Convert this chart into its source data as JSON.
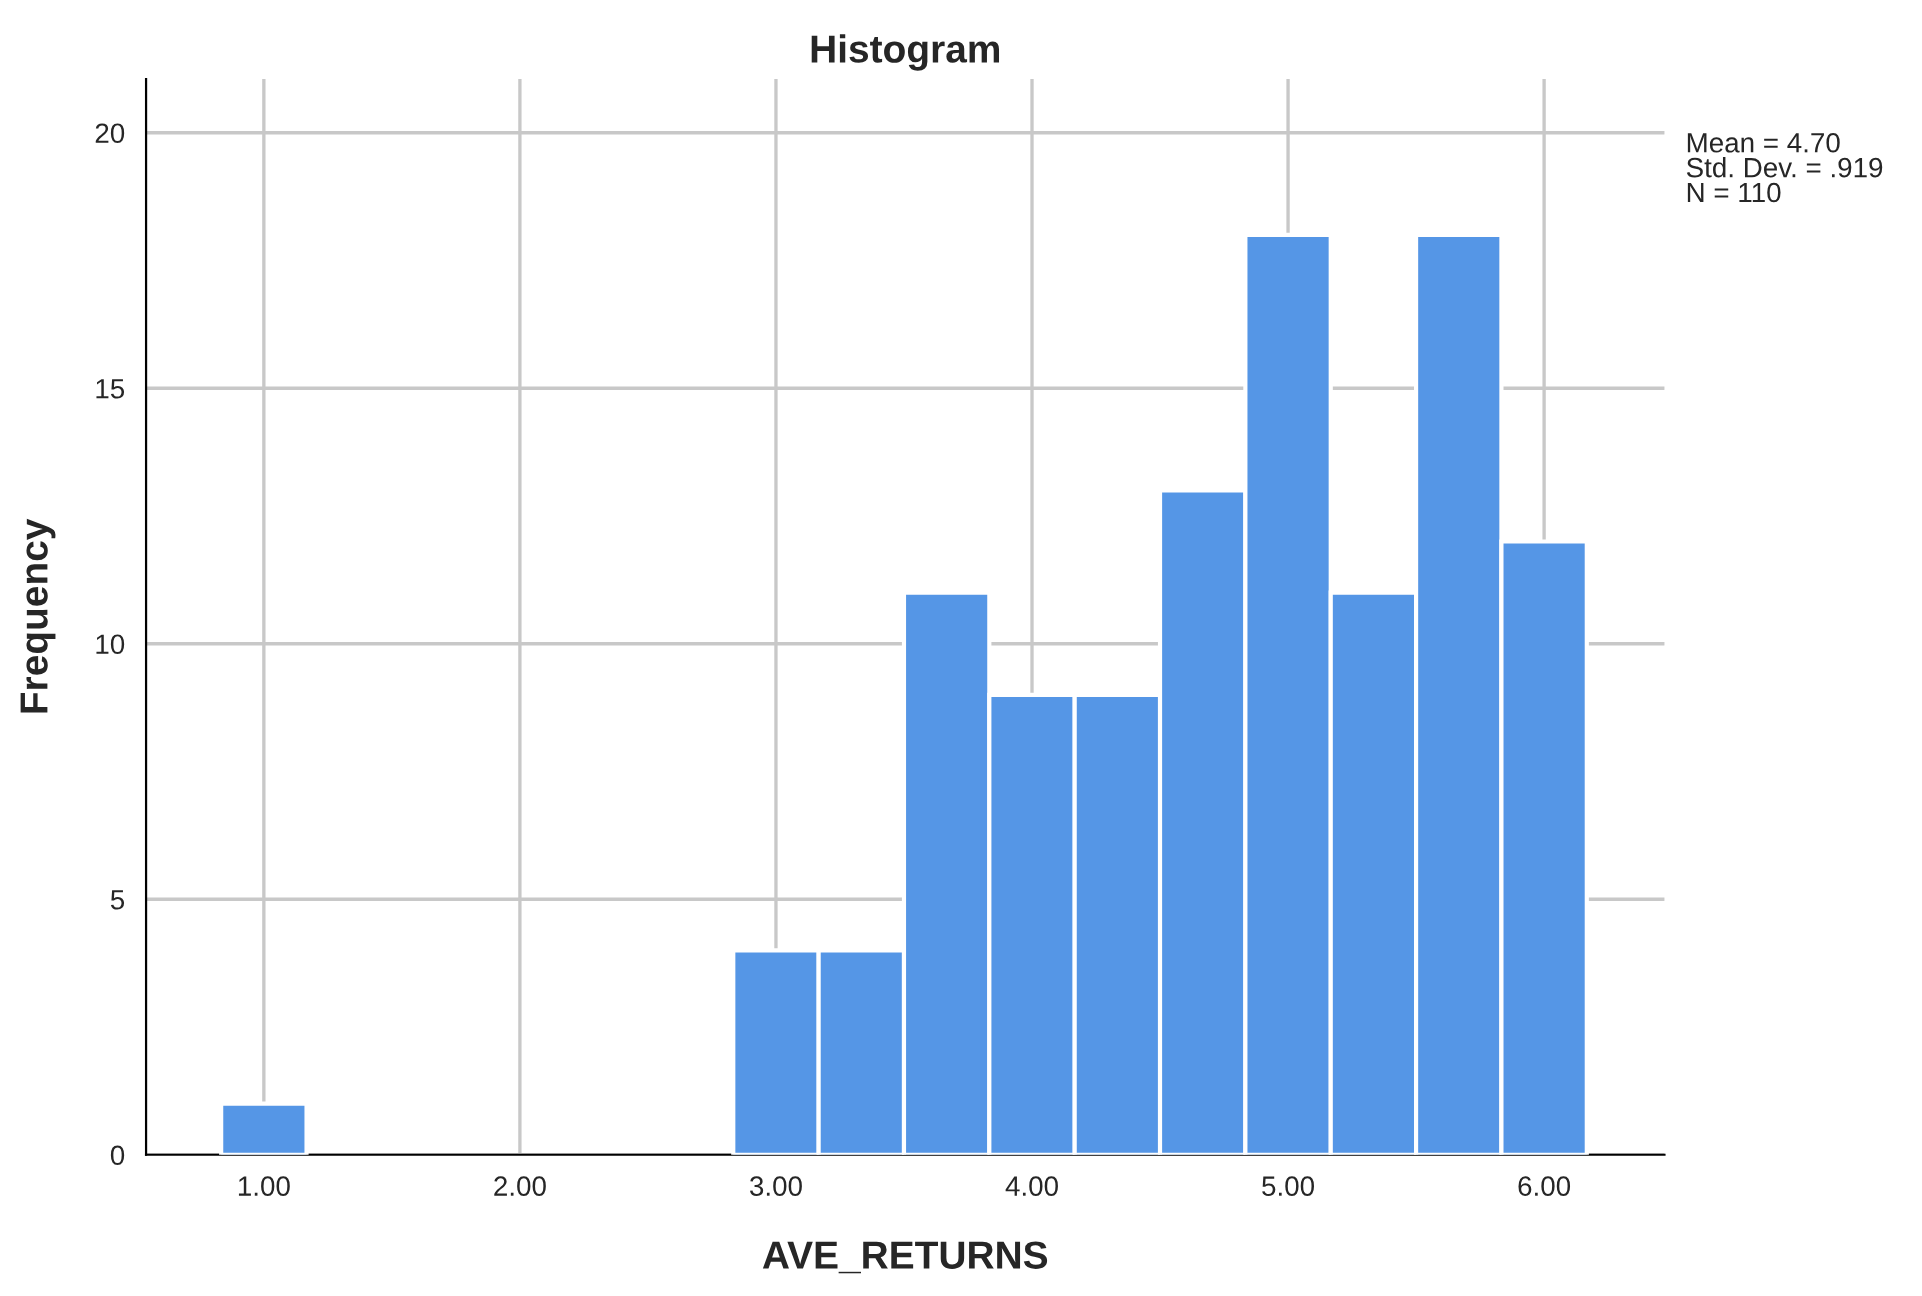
{
  "chart_data": {
    "type": "histogram",
    "title": "Histogram",
    "xlabel": "AVE_RETURNS",
    "ylabel": "Frequency",
    "bins": [
      0.8333,
      1.1667,
      1.5,
      1.8333,
      2.1667,
      2.5,
      2.8333,
      3.1667,
      3.5,
      3.8333,
      4.1667,
      4.5,
      4.8333,
      5.1667,
      5.5,
      5.8333,
      6.1667
    ],
    "values": [
      1,
      0,
      0,
      0,
      0,
      0,
      4,
      4,
      11,
      9,
      9,
      13,
      18,
      11,
      18,
      12
    ],
    "color": "#5596e6",
    "xlim": [
      0.54,
      6.47
    ],
    "ylim": [
      0,
      21.05
    ],
    "xticks": [
      {
        "value": 1,
        "label": "1.00"
      },
      {
        "value": 2,
        "label": "2.00"
      },
      {
        "value": 3,
        "label": "3.00"
      },
      {
        "value": 4,
        "label": "4.00"
      },
      {
        "value": 5,
        "label": "5.00"
      },
      {
        "value": 6,
        "label": "6.00"
      }
    ],
    "yticks": [
      0,
      5,
      10,
      15,
      20
    ],
    "grid": true,
    "annotations": [
      "Mean = 4.70\nStd. Dev. = .919\nN = 110"
    ]
  }
}
